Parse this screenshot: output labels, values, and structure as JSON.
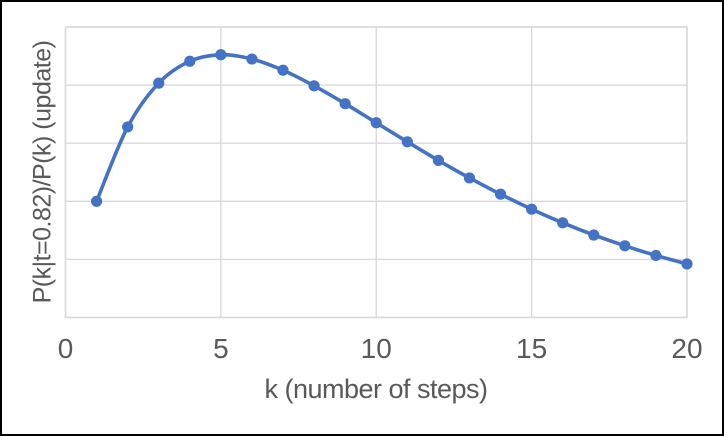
{
  "chart_data": {
    "type": "line",
    "title": "",
    "xlabel": "k (number of steps)",
    "ylabel": "P(k|t=0.82)/P(k) (update)",
    "x": [
      1,
      2,
      3,
      4,
      5,
      6,
      7,
      8,
      9,
      10,
      11,
      12,
      13,
      14,
      15,
      16,
      17,
      18,
      19,
      20
    ],
    "values": [
      1.0,
      1.64,
      2.017,
      2.205,
      2.261,
      2.224,
      2.128,
      1.994,
      1.84,
      1.676,
      1.512,
      1.352,
      1.201,
      1.061,
      0.932,
      0.815,
      0.71,
      0.617,
      0.534,
      0.461
    ],
    "xlim": [
      0,
      20
    ],
    "ylim": [
      0,
      2.5
    ],
    "x_tick_values": [
      0,
      5,
      10,
      15,
      20
    ],
    "x_tick_labels": [
      "0",
      "5",
      "10",
      "15",
      "20"
    ],
    "y_tick_labels_shown": false,
    "y_gridlines": 6,
    "grid": true,
    "legend": "none",
    "line_style": "smooth",
    "marker": "circle",
    "colors": {
      "series": "#4472C4",
      "gridline": "#D9D9D9",
      "plot_border": "#D9D9D9",
      "axis_text": "#595959",
      "background": "#FFFFFF",
      "frame_border": "#000000"
    }
  }
}
